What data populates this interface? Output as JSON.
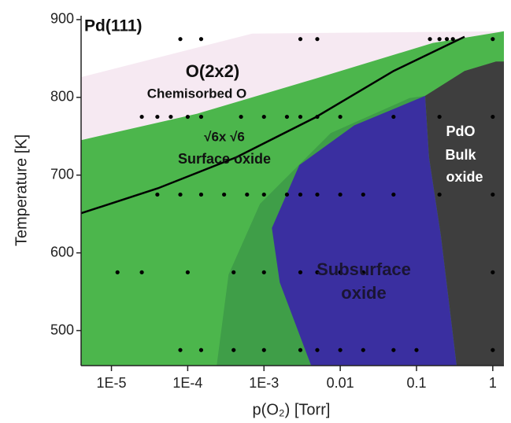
{
  "chart_data": {
    "type": "area",
    "title": "Pd(111)",
    "x_label": "p(O₂) [Torr]",
    "y_label": "Temperature [K]",
    "log_x": true,
    "xlim": [
      4e-06,
      1.4
    ],
    "ylim": [
      455,
      905
    ],
    "xticks": [
      {
        "value": 1e-05,
        "label": "1E-5"
      },
      {
        "value": 0.0001,
        "label": "1E-4"
      },
      {
        "value": 0.001,
        "label": "1E-3"
      },
      0.01,
      0.1,
      1
    ],
    "yticks": [
      500,
      600,
      700,
      800,
      900
    ],
    "regions": [
      {
        "color": "#f6e9f2",
        "x": [
          4e-06,
          0.0007,
          1.4,
          0.164,
          0.00468,
          0.000133,
          4e-06
        ],
        "y": [
          826,
          882,
          885,
          870,
          824,
          779,
          745
        ]
      },
      {
        "color": "#4cb64c",
        "x": [
          4e-06,
          0.000133,
          0.00468,
          0.164,
          1.4,
          1.4,
          4e-06
        ],
        "y": [
          745,
          779,
          824,
          870,
          885,
          455,
          455
        ]
      },
      {
        "color": "#3f9e48",
        "x": [
          0.00024,
          0.000343,
          0.000887,
          0.0075,
          0.0807,
          0.13,
          0.13
        ],
        "y": [
          455,
          572,
          663,
          754,
          799,
          802,
          455
        ]
      },
      {
        "color": "#3a2fa0",
        "x": [
          0.00416,
          0.00161,
          0.00127,
          0.00291,
          0.0153,
          0.13,
          0.146,
          0.209,
          0.336
        ],
        "y": [
          455,
          562,
          632,
          713,
          764,
          802,
          723,
          622,
          455
        ]
      },
      {
        "color": "#3e3e3e",
        "x": [
          0.13,
          0.426,
          1.1,
          1.4,
          1.4,
          0.336,
          0.209,
          0.146
        ],
        "y": [
          802,
          834,
          846,
          846,
          455,
          455,
          622,
          723
        ]
      }
    ],
    "line": {
      "color": "#000000",
      "x": [
        4e-06,
        4.06e-05,
        0.000435,
        0.00468,
        0.0502,
        0.426
      ],
      "y": [
        651,
        683,
        723,
        774,
        834,
        878
      ]
    },
    "points": {
      "color": "#000000",
      "x": [
        8e-05,
        0.00015,
        0.003,
        0.005,
        0.15,
        0.2,
        0.25,
        0.3,
        1,
        2.5e-05,
        4e-05,
        6e-05,
        0.0001,
        0.00015,
        0.0005,
        0.001,
        0.002,
        0.003,
        0.005,
        0.01,
        0.05,
        0.2,
        1,
        4e-05,
        8e-05,
        0.00015,
        0.0003,
        0.0006,
        0.001,
        0.002,
        0.003,
        0.005,
        0.01,
        0.02,
        0.05,
        0.2,
        1,
        1.2e-05,
        2.5e-05,
        0.0001,
        0.0004,
        0.001,
        0.003,
        0.005,
        0.01,
        0.02,
        1,
        8e-05,
        0.00015,
        0.0004,
        0.001,
        0.003,
        0.005,
        0.01,
        0.02,
        0.05,
        0.1,
        1
      ],
      "y": [
        875,
        875,
        875,
        875,
        875,
        875,
        875,
        875,
        875,
        775,
        775,
        775,
        775,
        775,
        775,
        775,
        775,
        775,
        775,
        775,
        775,
        775,
        775,
        675,
        675,
        675,
        675,
        675,
        675,
        675,
        675,
        675,
        675,
        675,
        675,
        675,
        675,
        575,
        575,
        575,
        575,
        575,
        575,
        575,
        575,
        575,
        575,
        475,
        475,
        475,
        475,
        475,
        475,
        475,
        475,
        475,
        475,
        475
      ]
    },
    "annotations": [
      "O(2x2)",
      "Chemisorbed O",
      "√6x √6",
      "Surface oxide",
      "PdO",
      "Bulk",
      "oxide",
      "Subsurface",
      "oxide"
    ]
  }
}
